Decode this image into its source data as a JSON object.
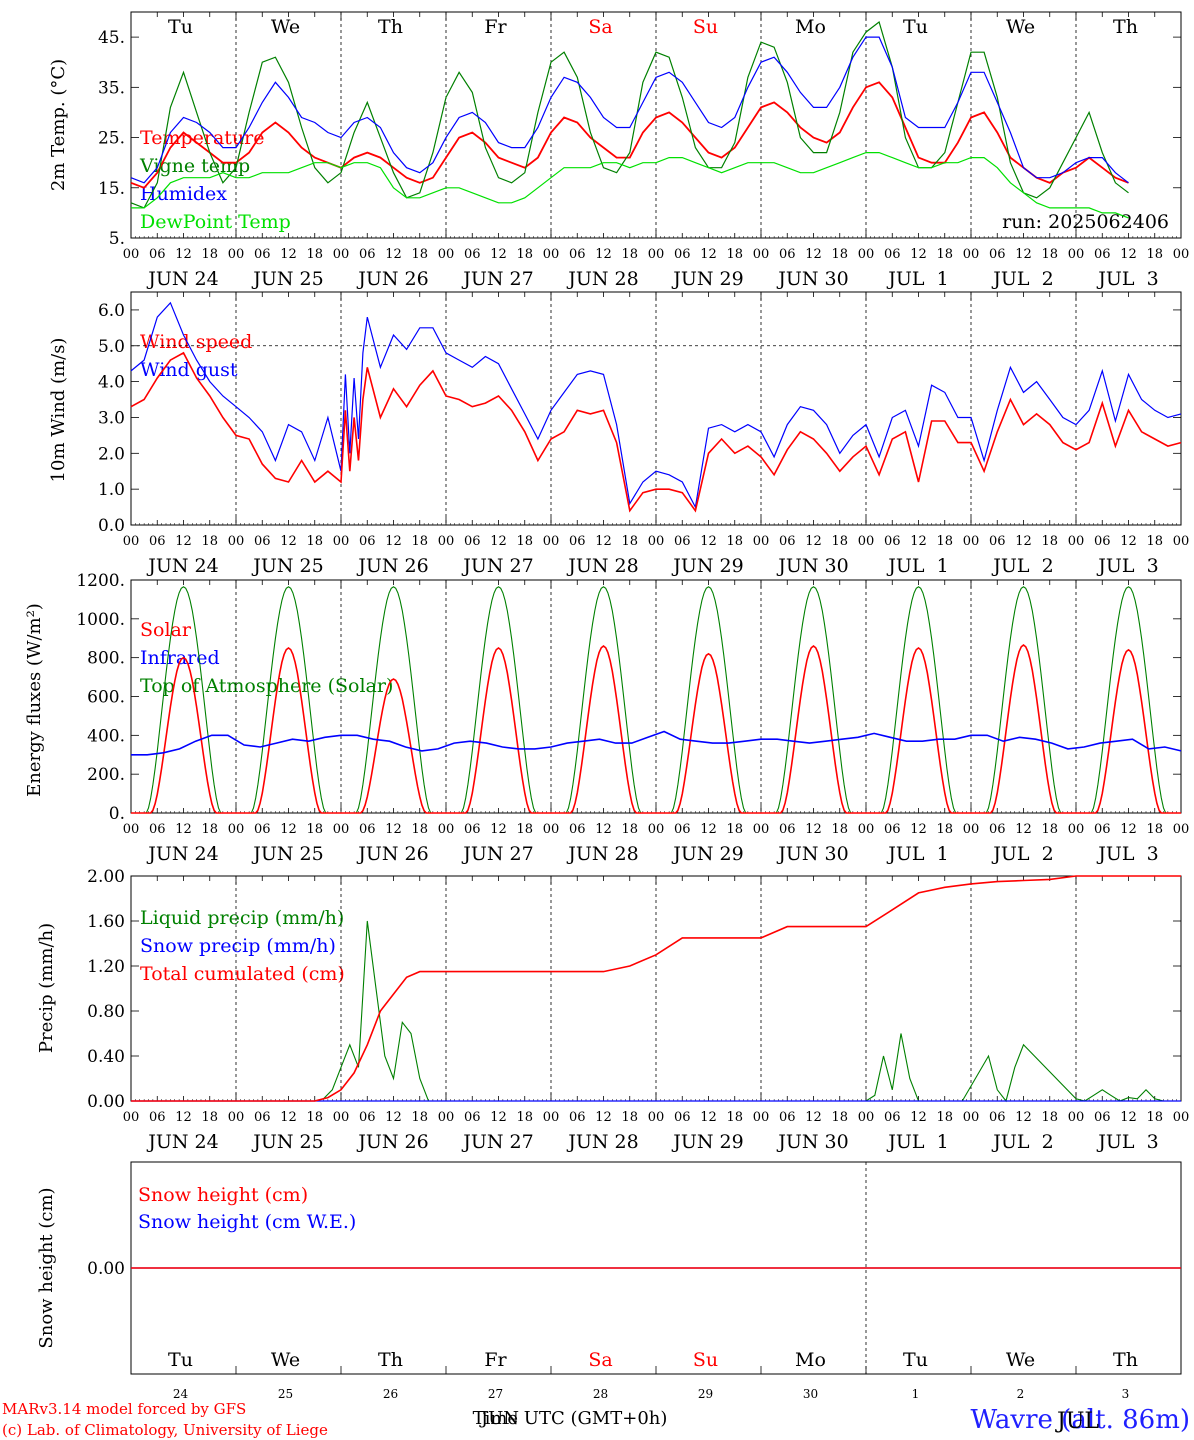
{
  "footer": {
    "credit_line1": "MARv3.14 model forced by GFS",
    "credit_line2": "(c) Lab. of Climatology, University of Liege",
    "xlabel": "Time UTC (GMT+0h)",
    "xlabel_overlap": "JUN",
    "station": "Wavre (alt. 86m)",
    "station_overlap": "JUL"
  },
  "run_label": "run: 2025062406",
  "colors": {
    "red": "#ff0000",
    "green": "#008000",
    "blue": "#0000ff",
    "lightgreen": "#00e000"
  },
  "top_weekdays": [
    {
      "label": "Tu",
      "color": "#000000"
    },
    {
      "label": "We",
      "color": "#000000"
    },
    {
      "label": "Th",
      "color": "#000000"
    },
    {
      "label": "Fr",
      "color": "#000000"
    },
    {
      "label": "Sa",
      "color": "#ff0000"
    },
    {
      "label": "Su",
      "color": "#ff0000"
    },
    {
      "label": "Mo",
      "color": "#000000"
    },
    {
      "label": "Tu",
      "color": "#000000"
    },
    {
      "label": "We",
      "color": "#000000"
    },
    {
      "label": "Th",
      "color": "#000000"
    }
  ],
  "hour_ticks": [
    "00",
    "06",
    "12",
    "18"
  ],
  "date_labels": [
    "JUN 24",
    "JUN 25",
    "JUN 26",
    "JUN 27",
    "JUN 28",
    "JUN 29",
    "JUN 30",
    "JUL  1",
    "JUL  2",
    "JUL  3"
  ],
  "bottom_daynums": [
    "24",
    "25",
    "26",
    "27",
    "28",
    "29",
    "30",
    "1",
    "2",
    "3"
  ],
  "chart_data": [
    {
      "type": "line",
      "ylabel": "2m Temp. (°C)",
      "ylim": [
        5,
        50
      ],
      "yticks": [
        "5.",
        "15.",
        "25.",
        "35.",
        "45."
      ],
      "yticks_values": [
        5,
        15,
        25,
        35,
        45
      ],
      "x_hours": [
        0,
        3,
        6,
        9,
        12,
        15,
        18,
        21,
        24,
        27,
        30,
        33,
        36,
        39,
        42,
        45,
        48,
        51,
        54,
        57,
        60,
        63,
        66,
        69,
        72,
        75,
        78,
        81,
        84,
        87,
        90,
        93,
        96,
        99,
        102,
        105,
        108,
        111,
        114,
        117,
        120,
        123,
        126,
        129,
        132,
        135,
        138,
        141,
        144,
        147,
        150,
        153,
        156,
        159,
        162,
        165,
        168,
        171,
        174,
        177,
        180,
        183,
        186,
        189,
        192,
        195,
        198,
        201,
        204,
        207,
        210,
        213,
        216,
        219,
        222,
        225,
        228,
        231,
        234,
        237,
        240
      ],
      "series": [
        {
          "name": "Temperature",
          "color": "#ff0000",
          "values": [
            16,
            15,
            18,
            23,
            26,
            24,
            22,
            20,
            20,
            22,
            26,
            28,
            26,
            23,
            21,
            20,
            19,
            21,
            22,
            21,
            19,
            17,
            16,
            17,
            21,
            25,
            26,
            24,
            21,
            20,
            19,
            21,
            26,
            29,
            28,
            25,
            23,
            21,
            21,
            26,
            29,
            30,
            28,
            25,
            22,
            21,
            23,
            27,
            31,
            32,
            30,
            27,
            25,
            24,
            26,
            31,
            35,
            36,
            33,
            27,
            21,
            20,
            20,
            24,
            29,
            30,
            26,
            21,
            19,
            17,
            16,
            18,
            19,
            21,
            19,
            17,
            16
          ]
        },
        {
          "name": "Vigne temp",
          "color": "#008000",
          "values": [
            12,
            11,
            16,
            31,
            38,
            30,
            22,
            16,
            19,
            30,
            40,
            41,
            36,
            27,
            19,
            16,
            18,
            26,
            32,
            25,
            18,
            13,
            14,
            22,
            33,
            38,
            34,
            23,
            17,
            16,
            18,
            30,
            40,
            42,
            37,
            26,
            19,
            18,
            22,
            36,
            42,
            41,
            33,
            23,
            19,
            19,
            24,
            37,
            44,
            43,
            36,
            25,
            22,
            22,
            30,
            42,
            46,
            48,
            39,
            25,
            19,
            19,
            22,
            32,
            42,
            42,
            33,
            20,
            14,
            13,
            15,
            20,
            25,
            30,
            22,
            16,
            14
          ]
        },
        {
          "name": "Humidex",
          "color": "#0000ff",
          "values": [
            17,
            16,
            19,
            26,
            29,
            28,
            26,
            23,
            23,
            27,
            32,
            36,
            33,
            29,
            28,
            26,
            25,
            28,
            29,
            27,
            22,
            19,
            18,
            20,
            25,
            29,
            30,
            28,
            24,
            23,
            23,
            27,
            33,
            37,
            36,
            33,
            29,
            27,
            27,
            32,
            37,
            38,
            36,
            32,
            28,
            27,
            29,
            35,
            40,
            41,
            38,
            34,
            31,
            31,
            35,
            41,
            45,
            45,
            39,
            29,
            27,
            27,
            27,
            32,
            38,
            38,
            32,
            26,
            19,
            17,
            17,
            18,
            20,
            21,
            21,
            18,
            16
          ]
        },
        {
          "name": "DewPoint Temp",
          "color": "#00e000",
          "values": [
            11,
            11,
            13,
            16,
            17,
            17,
            17,
            18,
            17,
            17,
            18,
            18,
            18,
            19,
            20,
            20,
            19,
            20,
            20,
            19,
            15,
            13,
            13,
            14,
            15,
            15,
            14,
            13,
            12,
            12,
            13,
            15,
            17,
            19,
            19,
            19,
            20,
            20,
            19,
            20,
            20,
            21,
            21,
            20,
            19,
            18,
            19,
            20,
            20,
            20,
            19,
            18,
            18,
            19,
            20,
            21,
            22,
            22,
            21,
            20,
            19,
            19,
            20,
            20,
            21,
            21,
            19,
            16,
            14,
            12,
            11,
            11,
            11,
            11,
            10,
            10,
            9
          ]
        }
      ]
    },
    {
      "type": "line",
      "ylabel": "10m Wind (m/s)",
      "ylim": [
        0,
        6.5
      ],
      "yticks": [
        "0.0",
        "1.0",
        "2.0",
        "3.0",
        "4.0",
        "5.0",
        "6.0"
      ],
      "yticks_values": [
        0,
        1,
        2,
        3,
        4,
        5,
        6
      ],
      "ref_line": 5,
      "x_hours": [
        0,
        3,
        6,
        9,
        12,
        15,
        18,
        21,
        24,
        27,
        30,
        33,
        36,
        39,
        42,
        45,
        48,
        49,
        50,
        51,
        52,
        53,
        54,
        57,
        60,
        63,
        66,
        69,
        72,
        75,
        78,
        81,
        84,
        87,
        90,
        93,
        96,
        99,
        102,
        105,
        108,
        111,
        114,
        117,
        120,
        123,
        126,
        129,
        132,
        135,
        138,
        141,
        144,
        147,
        150,
        153,
        156,
        159,
        162,
        165,
        168,
        171,
        174,
        177,
        180,
        183,
        186,
        189,
        192,
        195,
        198,
        201,
        204,
        207,
        210,
        213,
        216,
        219,
        222,
        225,
        228,
        231,
        234,
        237,
        240
      ],
      "series": [
        {
          "name": "Wind speed",
          "color": "#ff0000",
          "values": [
            3.3,
            3.5,
            4.1,
            4.6,
            4.8,
            4.1,
            3.6,
            3.0,
            2.5,
            2.4,
            1.7,
            1.3,
            1.2,
            1.8,
            1.2,
            1.5,
            1.2,
            3.2,
            1.5,
            3.0,
            1.8,
            3.5,
            4.4,
            3.0,
            3.8,
            3.3,
            3.9,
            4.3,
            3.6,
            3.5,
            3.3,
            3.4,
            3.6,
            3.2,
            2.6,
            1.8,
            2.4,
            2.6,
            3.2,
            3.1,
            3.2,
            2.3,
            0.4,
            0.9,
            1.0,
            1.0,
            0.9,
            0.4,
            2.0,
            2.4,
            2.0,
            2.2,
            1.9,
            1.4,
            2.1,
            2.6,
            2.4,
            2.0,
            1.5,
            1.9,
            2.2,
            1.4,
            2.4,
            2.6,
            1.2,
            2.9,
            2.9,
            2.3,
            2.3,
            1.5,
            2.6,
            3.5,
            2.8,
            3.1,
            2.8,
            2.3,
            2.1,
            2.3,
            3.4,
            2.2,
            3.2,
            2.6,
            2.4,
            2.2,
            2.3
          ]
        },
        {
          "name": "Wind gust",
          "color": "#0000ff",
          "values": [
            4.3,
            4.6,
            5.8,
            6.2,
            5.3,
            4.6,
            4.0,
            3.6,
            3.3,
            3.0,
            2.6,
            1.8,
            2.8,
            2.6,
            1.8,
            3.0,
            1.5,
            4.2,
            2.0,
            4.1,
            2.4,
            4.8,
            5.8,
            4.4,
            5.3,
            4.9,
            5.5,
            5.5,
            4.8,
            4.6,
            4.4,
            4.7,
            4.5,
            3.8,
            3.1,
            2.4,
            3.2,
            3.7,
            4.2,
            4.3,
            4.2,
            2.8,
            0.6,
            1.2,
            1.5,
            1.4,
            1.2,
            0.5,
            2.7,
            2.8,
            2.6,
            2.8,
            2.6,
            1.9,
            2.8,
            3.3,
            3.2,
            2.8,
            2.0,
            2.5,
            2.8,
            1.9,
            3.0,
            3.2,
            2.2,
            3.9,
            3.7,
            3.0,
            3.0,
            1.8,
            3.2,
            4.4,
            3.7,
            4.0,
            3.5,
            3.0,
            2.8,
            3.2,
            4.3,
            2.9,
            4.2,
            3.5,
            3.2,
            3.0,
            3.1
          ]
        }
      ]
    },
    {
      "type": "line",
      "ylabel": "Energy fluxes (W/m²)",
      "ylim": [
        0,
        1200
      ],
      "yticks": [
        "0.",
        "200.",
        "400.",
        "600.",
        "800.",
        "1000.",
        "1200."
      ],
      "yticks_values": [
        0,
        200,
        400,
        600,
        800,
        1000,
        1200
      ],
      "toa_peak": 1165,
      "solar_peaks": [
        800,
        850,
        690,
        850,
        860,
        820,
        860,
        850,
        865,
        840
      ],
      "infrared_values": [
        300,
        300,
        310,
        330,
        370,
        400,
        400,
        350,
        340,
        360,
        380,
        370,
        390,
        400,
        400,
        380,
        370,
        340,
        320,
        330,
        360,
        370,
        360,
        340,
        330,
        330,
        340,
        360,
        370,
        380,
        360,
        360,
        390,
        420,
        380,
        370,
        360,
        360,
        370,
        380,
        380,
        370,
        360,
        370,
        380,
        390,
        410,
        390,
        370,
        370,
        380,
        380,
        400,
        400,
        370,
        390,
        380,
        360,
        330,
        340,
        360,
        370,
        380,
        330,
        340,
        320
      ]
    },
    {
      "type": "line",
      "ylabel": "Precip (mm/h)",
      "ylim": [
        0,
        2.0
      ],
      "yticks": [
        "0.00",
        "0.40",
        "0.80",
        "1.20",
        "1.60",
        "2.00"
      ],
      "yticks_values": [
        0,
        0.4,
        0.8,
        1.2,
        1.6,
        2.0
      ],
      "series": [
        {
          "name": "Liquid precip (mm/h)",
          "color": "#008000"
        },
        {
          "name": "Snow precip (mm/h)",
          "color": "#0000ff"
        },
        {
          "name": "Total cumulated (cm)",
          "color": "#ff0000"
        }
      ],
      "liquid_x": [
        0,
        42,
        44,
        46,
        48,
        50,
        52,
        54,
        56,
        58,
        60,
        62,
        64,
        66,
        68,
        70,
        72,
        74,
        168,
        170,
        172,
        174,
        176,
        178,
        180,
        182,
        184,
        186,
        188,
        190,
        196,
        198,
        200,
        202,
        204,
        216,
        218,
        220,
        222,
        224,
        226,
        228,
        230,
        232,
        234,
        236,
        238,
        240
      ],
      "liquid_values": [
        0,
        0,
        0.02,
        0.1,
        0.3,
        0.5,
        0.3,
        1.6,
        1.0,
        0.4,
        0.2,
        0.7,
        0.6,
        0.2,
        0,
        0,
        0,
        0,
        0,
        0.05,
        0.4,
        0.1,
        0.6,
        0.2,
        0,
        0,
        0,
        0,
        0,
        0,
        0.4,
        0.1,
        0,
        0.3,
        0.5,
        0.02,
        0,
        0.05,
        0.1,
        0.05,
        0,
        0.03,
        0.02,
        0.1,
        0.02,
        0,
        0,
        0
      ],
      "cumul_x": [
        0,
        42,
        45,
        48,
        51,
        54,
        57,
        60,
        63,
        66,
        69,
        72,
        108,
        114,
        120,
        126,
        132,
        138,
        144,
        150,
        156,
        162,
        168,
        174,
        180,
        186,
        192,
        198,
        204,
        210,
        216,
        222,
        228,
        234,
        240
      ],
      "cumul_values": [
        0,
        0,
        0.03,
        0.1,
        0.25,
        0.5,
        0.8,
        0.95,
        1.1,
        1.15,
        1.15,
        1.15,
        1.15,
        1.2,
        1.3,
        1.45,
        1.45,
        1.45,
        1.45,
        1.55,
        1.55,
        1.55,
        1.55,
        1.7,
        1.85,
        1.9,
        1.93,
        1.95,
        1.96,
        1.97,
        2.0,
        2.0,
        2.0,
        2.0,
        2.0
      ]
    },
    {
      "type": "line",
      "ylabel": "Snow height (cm)",
      "ylim": [
        -1,
        1
      ],
      "yticks": [
        "0.00"
      ],
      "yticks_values": [
        0
      ],
      "series": [
        {
          "name": "Snow height (cm)",
          "color": "#ff0000",
          "values": [
            0,
            0
          ]
        },
        {
          "name": "Snow height (cm W.E.)",
          "color": "#0000ff",
          "values": [
            0,
            0
          ]
        }
      ]
    }
  ]
}
